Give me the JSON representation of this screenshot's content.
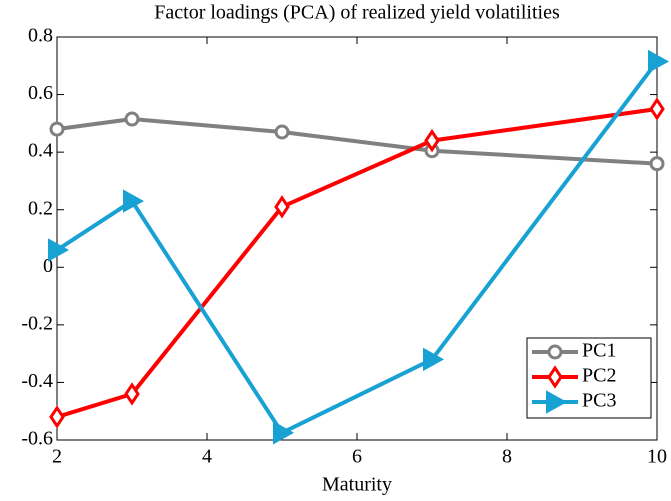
{
  "chart_data": {
    "type": "line",
    "title": "Factor loadings (PCA) of realized yield volatilities",
    "x_label": "Maturity",
    "x": [
      2,
      3,
      5,
      7,
      10
    ],
    "series": [
      {
        "name": "PC1",
        "color": "#808080",
        "marker": "circle",
        "values": [
          0.48,
          0.515,
          0.47,
          0.405,
          0.36
        ]
      },
      {
        "name": "PC2",
        "color": "#ff0000",
        "marker": "diamond",
        "values": [
          -0.52,
          -0.44,
          0.21,
          0.44,
          0.55
        ]
      },
      {
        "name": "PC3",
        "color": "#18a2d4",
        "marker": "triangle-right",
        "values": [
          0.06,
          0.23,
          -0.575,
          -0.32,
          0.715
        ]
      }
    ],
    "xlim": [
      2,
      10
    ],
    "xticks": [
      2,
      4,
      6,
      8,
      10
    ],
    "ylim": [
      -0.6,
      0.8
    ],
    "yticks": [
      -0.6,
      -0.4,
      -0.2,
      0,
      0.2,
      0.4,
      0.6,
      0.8
    ],
    "legend": "lower right"
  }
}
